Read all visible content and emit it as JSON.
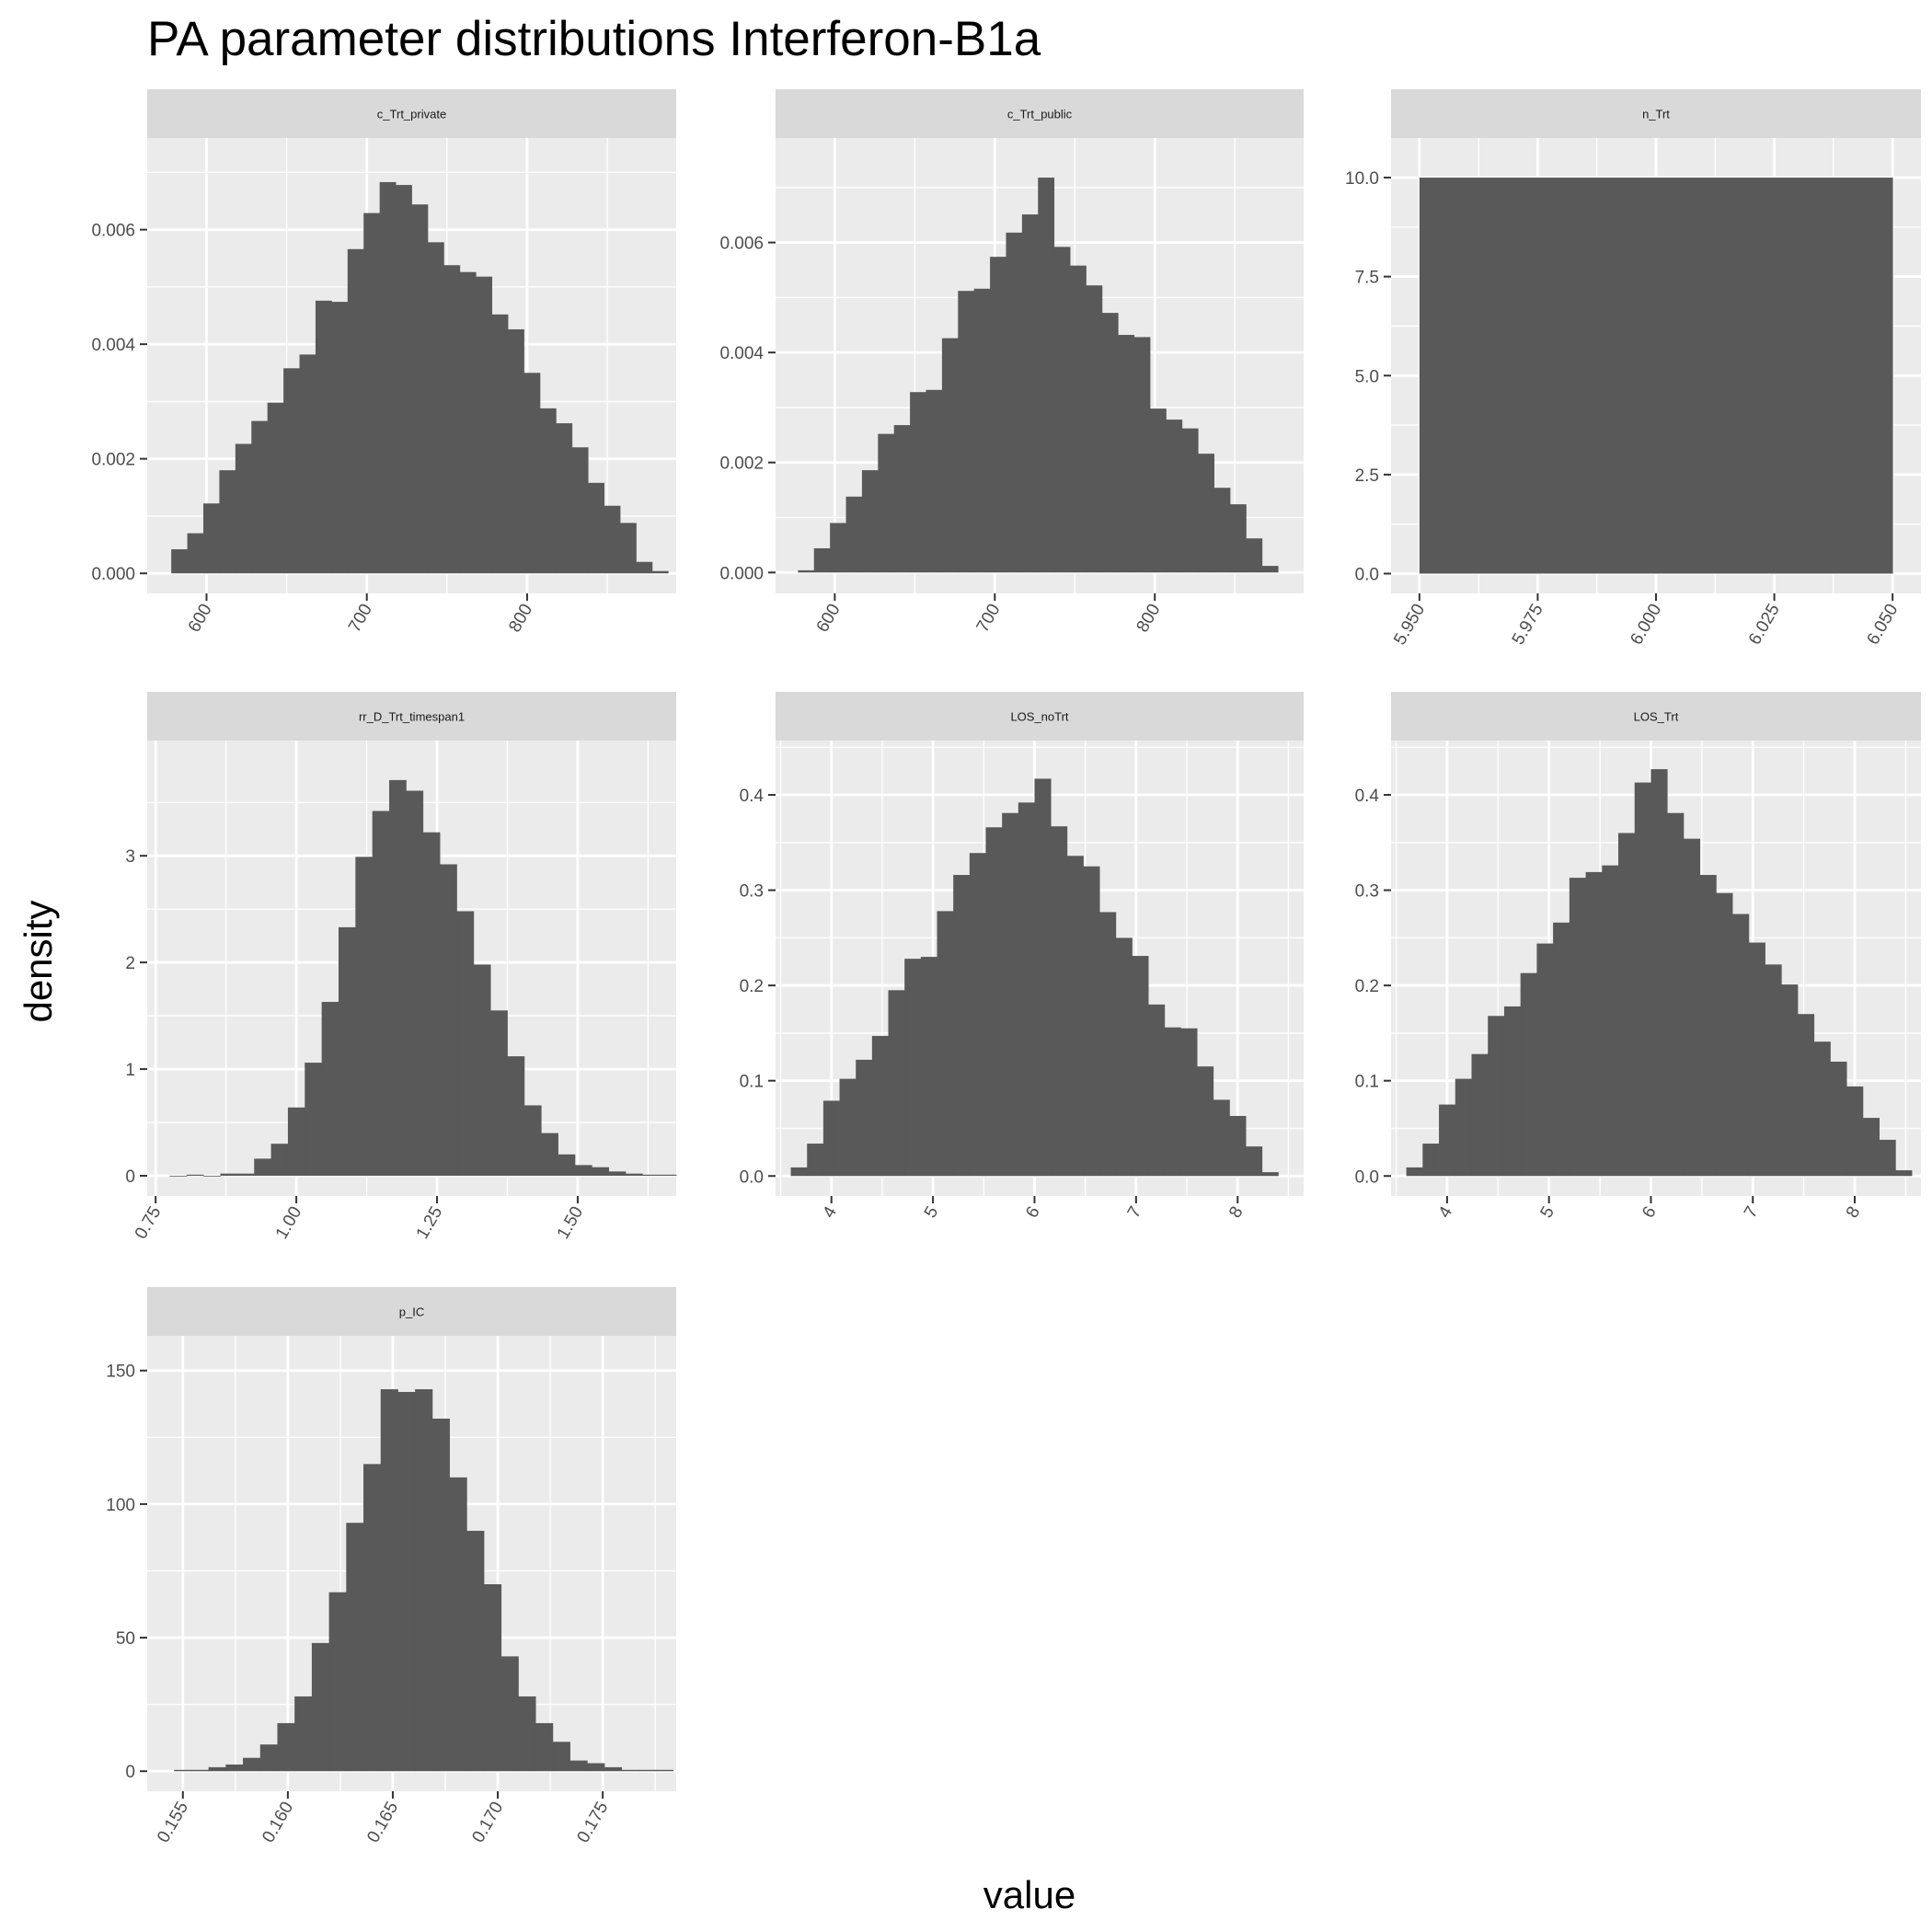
{
  "chart_data": {
    "type": "bar",
    "title": "PA parameter distributions Interferon-B1a",
    "xlabel": "value",
    "ylabel": "density",
    "grid": true,
    "colors": {
      "bar": "#595959",
      "panel": "#ebebeb",
      "strip": "#d9d9d9",
      "grid": "#ffffff"
    },
    "panels": [
      {
        "name": "c_Trt_private",
        "xlim": [
          563,
          893
        ],
        "ylim": [
          -0.00035,
          0.0076
        ],
        "xticks": [
          600,
          700,
          800
        ],
        "xtick_labels": [
          "600",
          "700",
          "800"
        ],
        "yticks": [
          0,
          0.002,
          0.004,
          0.006
        ],
        "ytick_labels": [
          "0.000",
          "0.002",
          "0.004",
          "0.006"
        ],
        "bin_start": 578,
        "bin_width": 10,
        "values": [
          0.00042,
          0.0007,
          0.00122,
          0.0018,
          0.00226,
          0.00266,
          0.00298,
          0.00358,
          0.00382,
          0.00476,
          0.00474,
          0.00566,
          0.00629,
          0.00683,
          0.00678,
          0.00644,
          0.00578,
          0.00538,
          0.00526,
          0.00518,
          0.00452,
          0.00426,
          0.0035,
          0.00288,
          0.00262,
          0.0022,
          0.00158,
          0.00118,
          0.00088,
          0.0002,
          4e-05
        ]
      },
      {
        "name": "c_Trt_public",
        "xlim": [
          563,
          893
        ],
        "ylim": [
          -0.00038,
          0.0079
        ],
        "xticks": [
          600,
          700,
          800
        ],
        "xtick_labels": [
          "600",
          "700",
          "800"
        ],
        "yticks": [
          0,
          0.002,
          0.004,
          0.006
        ],
        "ytick_labels": [
          "0.000",
          "0.002",
          "0.004",
          "0.006"
        ],
        "bin_start": 577,
        "bin_width": 10,
        "values": [
          4e-05,
          0.00044,
          0.0009,
          0.00138,
          0.00186,
          0.00252,
          0.00268,
          0.00328,
          0.00332,
          0.00426,
          0.00512,
          0.00516,
          0.00574,
          0.00618,
          0.00651,
          0.00718,
          0.00592,
          0.00558,
          0.00522,
          0.00472,
          0.00432,
          0.00428,
          0.00298,
          0.00278,
          0.00262,
          0.00216,
          0.00154,
          0.00124,
          0.00062,
          0.00012
        ]
      },
      {
        "name": "n_Trt",
        "xlim": [
          5.944,
          6.056
        ],
        "ylim": [
          -0.5,
          11
        ],
        "xticks": [
          5.95,
          5.975,
          6.0,
          6.025,
          6.05
        ],
        "xtick_labels": [
          "5.950",
          "5.975",
          "6.000",
          "6.025",
          "6.050"
        ],
        "yticks": [
          0,
          2.5,
          5,
          7.5,
          10
        ],
        "ytick_labels": [
          "0.0",
          "2.5",
          "5.0",
          "7.5",
          "10.0"
        ],
        "bin_start": 5.95,
        "bin_width": 0.1,
        "values": [
          10
        ]
      },
      {
        "name": "rr_D_Trt_timespan1",
        "xlim": [
          0.735,
          1.675
        ],
        "ylim": [
          -0.19,
          4.08
        ],
        "xticks": [
          0.75,
          1.0,
          1.25,
          1.5
        ],
        "xtick_labels": [
          "0.75",
          "1.00",
          "1.25",
          "1.50"
        ],
        "yticks": [
          0,
          1,
          2,
          3
        ],
        "ytick_labels": [
          "0",
          "1",
          "2",
          "3"
        ],
        "bin_start": 0.775,
        "bin_width": 0.03,
        "values": [
          0,
          0.01,
          0,
          0.02,
          0.02,
          0.16,
          0.3,
          0.64,
          1.06,
          1.63,
          2.33,
          2.99,
          3.42,
          3.71,
          3.61,
          3.22,
          2.92,
          2.48,
          1.98,
          1.55,
          1.12,
          0.66,
          0.4,
          0.2,
          0.1,
          0.08,
          0.04,
          0.02,
          0.01,
          0.01
        ]
      },
      {
        "name": "LOS_noTrt",
        "xlim": [
          3.45,
          8.65
        ],
        "ylim": [
          -0.021,
          0.457
        ],
        "xticks": [
          4,
          5,
          6,
          7,
          8
        ],
        "xtick_labels": [
          "4",
          "5",
          "6",
          "7",
          "8"
        ],
        "yticks": [
          0,
          0.1,
          0.2,
          0.3,
          0.4
        ],
        "ytick_labels": [
          "0.0",
          "0.1",
          "0.2",
          "0.3",
          "0.4"
        ],
        "bin_start": 3.6,
        "bin_width": 0.16,
        "values": [
          0.009,
          0.034,
          0.079,
          0.102,
          0.122,
          0.147,
          0.195,
          0.228,
          0.23,
          0.278,
          0.316,
          0.339,
          0.366,
          0.381,
          0.392,
          0.417,
          0.367,
          0.336,
          0.325,
          0.277,
          0.25,
          0.231,
          0.18,
          0.156,
          0.155,
          0.115,
          0.08,
          0.063,
          0.031,
          0.004
        ]
      },
      {
        "name": "LOS_Trt",
        "xlim": [
          3.45,
          8.65
        ],
        "ylim": [
          -0.021,
          0.457
        ],
        "xticks": [
          4,
          5,
          6,
          7,
          8
        ],
        "xtick_labels": [
          "4",
          "5",
          "6",
          "7",
          "8"
        ],
        "yticks": [
          0,
          0.1,
          0.2,
          0.3,
          0.4
        ],
        "ytick_labels": [
          "0.0",
          "0.1",
          "0.2",
          "0.3",
          "0.4"
        ],
        "bin_start": 3.6,
        "bin_width": 0.16,
        "values": [
          0.009,
          0.034,
          0.075,
          0.102,
          0.128,
          0.168,
          0.178,
          0.213,
          0.244,
          0.266,
          0.313,
          0.319,
          0.326,
          0.36,
          0.413,
          0.427,
          0.381,
          0.354,
          0.316,
          0.297,
          0.275,
          0.245,
          0.222,
          0.201,
          0.17,
          0.141,
          0.12,
          0.094,
          0.061,
          0.038,
          0.006
        ]
      },
      {
        "name": "p_IC",
        "xlim": [
          0.1533,
          0.1785
        ],
        "ylim": [
          -7.5,
          163
        ],
        "xticks": [
          0.155,
          0.16,
          0.165,
          0.17,
          0.175
        ],
        "xtick_labels": [
          "0.155",
          "0.160",
          "0.165",
          "0.170",
          "0.175"
        ],
        "yticks": [
          0,
          50,
          100,
          150
        ],
        "ytick_labels": [
          "0",
          "50",
          "100",
          "150"
        ],
        "bin_start": 0.15458,
        "bin_width": 0.00082,
        "values": [
          0.5,
          0.5,
          1.5,
          2.5,
          5,
          10,
          18,
          28,
          48,
          67,
          93,
          115,
          143,
          142,
          143,
          132,
          110,
          90,
          70,
          43,
          28,
          18,
          11,
          4,
          3,
          1.5,
          0.5,
          0.5,
          0.5
        ]
      }
    ]
  }
}
